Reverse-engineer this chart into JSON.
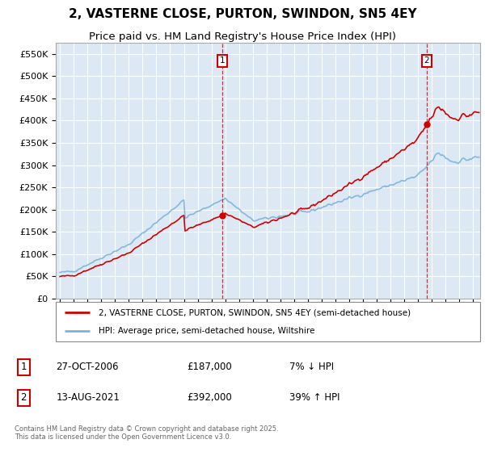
{
  "title": "2, VASTERNE CLOSE, PURTON, SWINDON, SN5 4EY",
  "subtitle": "Price paid vs. HM Land Registry's House Price Index (HPI)",
  "legend_line1": "2, VASTERNE CLOSE, PURTON, SWINDON, SN5 4EY (semi-detached house)",
  "legend_line2": "HPI: Average price, semi-detached house, Wiltshire",
  "footer": "Contains HM Land Registry data © Crown copyright and database right 2025.\nThis data is licensed under the Open Government Licence v3.0.",
  "sale1_date": "27-OCT-2006",
  "sale1_price": 187000,
  "sale1_label": "7% ↓ HPI",
  "sale2_date": "13-AUG-2021",
  "sale2_price": 392000,
  "sale2_label": "39% ↑ HPI",
  "ylim": [
    0,
    575000
  ],
  "xlim_start": 1994.7,
  "xlim_end": 2025.5,
  "plot_bg_color": "#dce9f5",
  "grid_color": "#ffffff",
  "red_line_color": "#cc0000",
  "blue_line_color": "#7ab3d9",
  "vline_color": "#cc0000",
  "sale_marker_color": "#cc0000",
  "box_color": "#cc0000",
  "title_fontsize": 11,
  "subtitle_fontsize": 9.5
}
